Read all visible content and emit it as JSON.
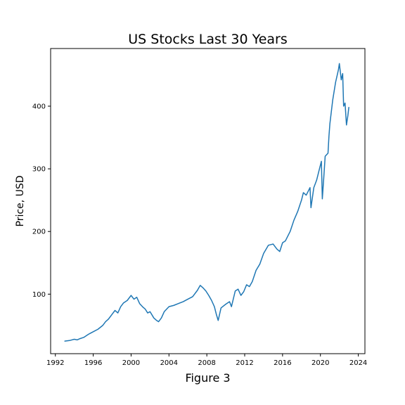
{
  "chart_data": {
    "type": "line",
    "title": "US Stocks Last 30 Years",
    "xlabel": "",
    "ylabel": "Price, USD",
    "figure_label": "Figure 3",
    "xlim": [
      1991.5,
      2024.7
    ],
    "ylim": [
      5,
      492
    ],
    "x_ticks": [
      1992,
      1996,
      2000,
      2004,
      2008,
      2012,
      2016,
      2020,
      2024
    ],
    "y_ticks": [
      100,
      200,
      300,
      400
    ],
    "grid": false,
    "legend": "none",
    "color": "#1f77b4",
    "series": [
      {
        "x": [
          1993.0,
          1993.5,
          1994.0,
          1994.3,
          1994.6,
          1995.0,
          1995.5,
          1996.0,
          1996.5,
          1997.0,
          1997.3,
          1997.6,
          1998.0,
          1998.3,
          1998.6,
          1998.9,
          1999.2,
          1999.6,
          2000.0,
          2000.3,
          2000.6,
          2000.9,
          2001.2,
          2001.5,
          2001.75,
          2002.0,
          2002.4,
          2002.7,
          2002.9,
          2003.2,
          2003.5,
          2004.0,
          2004.5,
          2005.0,
          2005.5,
          2006.0,
          2006.5,
          2007.0,
          2007.3,
          2007.6,
          2007.9,
          2008.2,
          2008.5,
          2008.8,
          2009.0,
          2009.2,
          2009.5,
          2010.0,
          2010.4,
          2010.6,
          2011.0,
          2011.3,
          2011.6,
          2011.9,
          2012.2,
          2012.5,
          2012.8,
          2013.2,
          2013.6,
          2014.0,
          2014.5,
          2015.0,
          2015.4,
          2015.7,
          2016.0,
          2016.3,
          2016.8,
          2017.2,
          2017.6,
          2018.0,
          2018.2,
          2018.5,
          2018.9,
          2019.0,
          2019.3,
          2019.6,
          2019.9,
          2020.1,
          2020.2,
          2020.35,
          2020.5,
          2020.8,
          2020.9,
          2021.0,
          2021.3,
          2021.6,
          2021.9,
          2022.0,
          2022.2,
          2022.35,
          2022.45,
          2022.6,
          2022.75,
          2022.9,
          2023.0
        ],
        "values": [
          25,
          26,
          28,
          27,
          29,
          31,
          36,
          40,
          44,
          50,
          56,
          60,
          68,
          74,
          70,
          80,
          86,
          90,
          98,
          92,
          95,
          85,
          80,
          76,
          70,
          72,
          62,
          58,
          56,
          62,
          72,
          80,
          82,
          85,
          88,
          92,
          96,
          106,
          114,
          110,
          105,
          98,
          90,
          80,
          68,
          58,
          78,
          84,
          88,
          80,
          105,
          108,
          98,
          104,
          115,
          112,
          120,
          138,
          148,
          165,
          178,
          180,
          172,
          168,
          182,
          185,
          200,
          218,
          232,
          250,
          262,
          258,
          270,
          238,
          270,
          282,
          300,
          312,
          252,
          285,
          320,
          325,
          352,
          372,
          410,
          438,
          458,
          468,
          442,
          452,
          400,
          405,
          370,
          385,
          398
        ]
      }
    ]
  }
}
